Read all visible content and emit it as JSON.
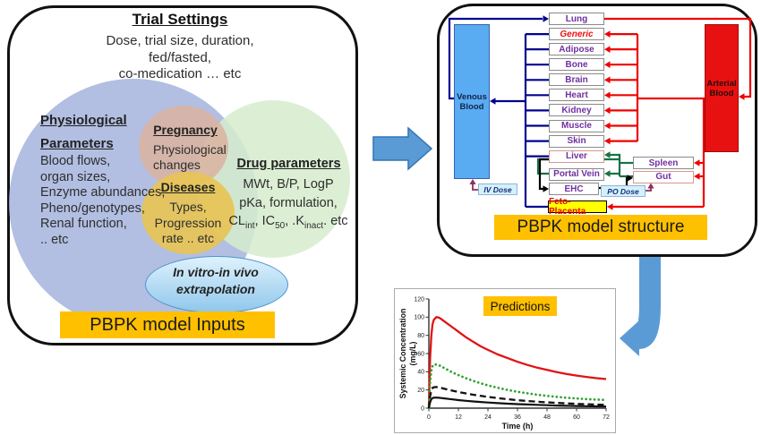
{
  "left_panel": {
    "title": "Trial Settings",
    "subtitle_lines": [
      "Dose, trial size, duration,",
      "fed/fasted,",
      "co-medication  … etc"
    ],
    "physiological": {
      "heading_lines": [
        "Physiological",
        "Parameters"
      ],
      "items": [
        "Blood flows,",
        "organ sizes,",
        "Enzyme abundances,",
        "Pheno/genotypes,",
        "Renal function,",
        ".. etc"
      ]
    },
    "pregnancy": {
      "heading": "Pregnancy",
      "lines": [
        "Physiological",
        "changes"
      ]
    },
    "diseases": {
      "heading": "Diseases",
      "lines": [
        "Types,",
        "Progression",
        "rate .. etc"
      ]
    },
    "drug": {
      "heading": "Drug parameters",
      "line1": "MWt, B/P, LogP",
      "line2": "pKa, formulation,",
      "line3": "CL_{int}, IC_{50}, .K_{inact}. etc"
    },
    "ivive_lines": [
      "In vitro-in vivo",
      "extrapolation"
    ],
    "footer_label": "PBPK model Inputs"
  },
  "right_panel": {
    "organ_column": [
      {
        "label": "Lung"
      },
      {
        "label": "Generic",
        "text_color": "#EE1111",
        "italic": true
      },
      {
        "label": "Adipose"
      },
      {
        "label": "Bone"
      },
      {
        "label": "Brain"
      },
      {
        "label": "Heart"
      },
      {
        "label": "Kidney"
      },
      {
        "label": "Muscle"
      },
      {
        "label": "Skin"
      },
      {
        "label": "Liver",
        "border_color": "#D99694"
      }
    ],
    "venous_lines": [
      "Venous",
      "Blood"
    ],
    "arterial_lines": [
      "Arterial",
      "Blood"
    ],
    "portal_vein_label": "Portal Vein",
    "ehc_label": "EHC",
    "spleen_label": "Spleen",
    "gut_label": "Gut",
    "feto_label": "Feto-Placenta",
    "iv_dose_label": "IV Dose",
    "po_dose_label": "PO Dose",
    "footer_label": "PBPK model structure",
    "colors": {
      "venous_line": "#00008F",
      "arterial_line": "#F00000",
      "portal_line": "#177245",
      "ehc_line": "#000000",
      "dose_line": "#8C2E5C",
      "organ_text": "#7030A0",
      "gut_border": "#D99694",
      "accent_gold": "#FFC000",
      "big_arrow": "#5B9BD5"
    }
  },
  "chart_data": {
    "type": "line",
    "title": "Predictions",
    "xlabel": "Time (h)",
    "ylabel_lines": [
      "Systemic Concentration",
      "(mg/L)"
    ],
    "xlim": [
      0,
      72
    ],
    "ylim": [
      0,
      120
    ],
    "x_ticks": [
      0,
      12,
      24,
      36,
      48,
      60,
      72
    ],
    "y_ticks": [
      0,
      20,
      40,
      60,
      80,
      100,
      120
    ],
    "grid": false,
    "legend": "none",
    "x": [
      0,
      0.5,
      1,
      1.5,
      2,
      3,
      4,
      5,
      6,
      8,
      10,
      12,
      15,
      18,
      21,
      24,
      28,
      32,
      36,
      40,
      44,
      48,
      52,
      56,
      60,
      64,
      68,
      72
    ],
    "series": [
      {
        "name": "red-solid",
        "color": "#E11212",
        "style": "solid",
        "width": 2.3,
        "values": [
          0,
          55,
          80,
          92,
          97,
          100,
          99.5,
          98,
          96,
          92,
          88,
          84,
          78,
          73,
          68,
          64,
          59,
          55,
          51,
          47.5,
          44.5,
          42,
          39.5,
          37.5,
          35.8,
          34.3,
          33,
          32
        ]
      },
      {
        "name": "green-dotted",
        "color": "#2FA12F",
        "style": "dotted",
        "width": 2.7,
        "values": [
          0,
          28,
          41,
          46,
          48,
          48,
          47.2,
          46,
          44.5,
          41.5,
          38.8,
          36.3,
          33,
          30,
          27.3,
          25,
          22.3,
          20,
          18,
          16.3,
          14.8,
          13.5,
          12.4,
          11.4,
          10.6,
          9.9,
          9.4,
          9
        ]
      },
      {
        "name": "black-dashed",
        "color": "#111111",
        "style": "dashed",
        "width": 2.3,
        "values": [
          0,
          13,
          19.5,
          22,
          23,
          23.2,
          22.8,
          22.2,
          21.5,
          20.2,
          19,
          17.8,
          16.2,
          14.8,
          13.5,
          12.4,
          11,
          9.8,
          8.8,
          7.9,
          7.1,
          6.4,
          5.8,
          5.2,
          4.7,
          4.3,
          3.9,
          3.6
        ]
      },
      {
        "name": "black-solid",
        "color": "#111111",
        "style": "solid",
        "width": 2.2,
        "values": [
          0,
          6.5,
          9.8,
          11,
          11.5,
          11.6,
          11.4,
          11.1,
          10.8,
          10.1,
          9.5,
          8.9,
          8.1,
          7.4,
          6.8,
          6.2,
          5.5,
          4.9,
          4.4,
          4,
          3.6,
          3.2,
          2.9,
          2.6,
          2.4,
          2.2,
          2,
          1.8
        ]
      }
    ]
  }
}
